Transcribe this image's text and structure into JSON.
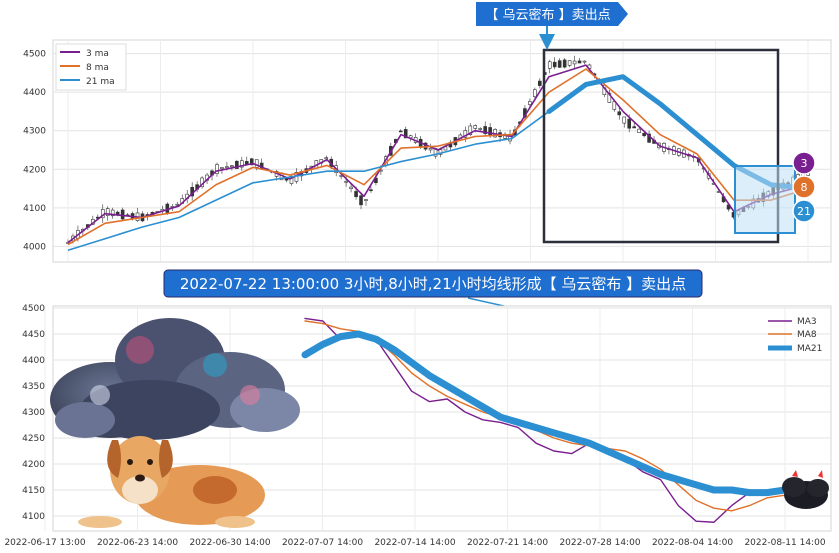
{
  "colors": {
    "ma3": "#7a1f8f",
    "ma8": "#e0712a",
    "ma21": "#2b8fd1",
    "banner_bg": "#1e6fd0",
    "frame": "#2c2f3a",
    "highlight_fill": "#bfe0f5",
    "highlight_stroke": "#2b8fd1"
  },
  "top_banner": {
    "text": "【 乌云密布 】卖出点"
  },
  "middle_banner": {
    "text": "2022-07-22 13:00:00 3小时,8小时,21小时均线形成【 乌云密布 】卖出点"
  },
  "badges": [
    {
      "label": "3",
      "color": "#7a1f8f"
    },
    {
      "label": "8",
      "color": "#e0712a"
    },
    {
      "label": "21",
      "color": "#2b8fd1"
    }
  ],
  "chart_data": [
    {
      "type": "candlestick",
      "y_ticks": [
        "4000",
        "4100",
        "4200",
        "4300",
        "4400",
        "4500"
      ],
      "ylim": [
        3970,
        4530
      ],
      "grid": true,
      "legend_position": "top-left",
      "legend": [
        "3 ma",
        "8 ma",
        "21 ma"
      ],
      "x": [
        0,
        5,
        10,
        15,
        20,
        25,
        30,
        35,
        40,
        45,
        50,
        55,
        60,
        65,
        70,
        75,
        80,
        85,
        90,
        95,
        100
      ],
      "price_path": [
        4010,
        4090,
        4075,
        4110,
        4200,
        4220,
        4170,
        4230,
        4110,
        4300,
        4240,
        4310,
        4280,
        4470,
        4480,
        4330,
        4260,
        4230,
        4080,
        4140,
        4190
      ],
      "series": [
        {
          "name": "3 ma",
          "values": [
            4010,
            4085,
            4075,
            4105,
            4195,
            4215,
            4175,
            4225,
            4130,
            4290,
            4250,
            4300,
            4285,
            4440,
            4470,
            4350,
            4260,
            4230,
            4090,
            4135,
            4160
          ]
        },
        {
          "name": "8 ma",
          "values": [
            4005,
            4060,
            4075,
            4090,
            4160,
            4205,
            4185,
            4210,
            4160,
            4255,
            4260,
            4285,
            4290,
            4400,
            4460,
            4380,
            4290,
            4240,
            4120,
            4120,
            4150
          ]
        },
        {
          "name": "21 ma",
          "values": [
            3990,
            4020,
            4050,
            4075,
            4120,
            4165,
            4180,
            4195,
            4195,
            4220,
            4240,
            4265,
            4280,
            4350,
            4420,
            4440,
            4370,
            4290,
            4210,
            4160,
            4150
          ]
        }
      ]
    },
    {
      "type": "line",
      "y_ticks": [
        "4100",
        "4150",
        "4200",
        "4250",
        "4300",
        "4350",
        "4400",
        "4450",
        "4500"
      ],
      "x_ticks": [
        "2022-06-17 13:00",
        "2022-06-23 14:00",
        "2022-06-30 14:00",
        "2022-07-07 14:00",
        "2022-07-14 14:00",
        "2022-07-21 14:00",
        "2022-07-28 14:00",
        "2022-08-04 14:00",
        "2022-08-11 14:00"
      ],
      "ylim": [
        4075,
        4500
      ],
      "grid": true,
      "legend_position": "top-right",
      "legend": [
        "MA3",
        "MA8",
        "MA21"
      ],
      "x": [
        0,
        3,
        6,
        9,
        12,
        15,
        18,
        21,
        24,
        27,
        30,
        33,
        36,
        39,
        42,
        45,
        48,
        51,
        54,
        57,
        60,
        63,
        66,
        69,
        72,
        75,
        78,
        81,
        84,
        87,
        90
      ],
      "series": [
        {
          "name": "MA3",
          "values": [
            4480,
            4475,
            4440,
            4445,
            4440,
            4390,
            4340,
            4320,
            4325,
            4300,
            4285,
            4280,
            4270,
            4240,
            4225,
            4220,
            4240,
            4230,
            4210,
            4185,
            4170,
            4120,
            4090,
            4088,
            4120,
            4145,
            4140,
            4150,
            null,
            null,
            null
          ]
        },
        {
          "name": "MA8",
          "values": [
            4475,
            4470,
            4460,
            4455,
            4440,
            4410,
            4375,
            4350,
            4330,
            4315,
            4300,
            4290,
            4280,
            4265,
            4250,
            4240,
            4235,
            4230,
            4225,
            4210,
            4190,
            4160,
            4130,
            4115,
            4110,
            4120,
            4135,
            4140,
            null,
            null,
            null
          ]
        },
        {
          "name": "MA21",
          "values": [
            4410,
            4430,
            4445,
            4450,
            4440,
            4420,
            4395,
            4370,
            4350,
            4330,
            4310,
            4290,
            4280,
            4270,
            4260,
            4250,
            4240,
            4225,
            4210,
            4195,
            4180,
            4170,
            4160,
            4150,
            4150,
            4145,
            4145,
            4150,
            null,
            null,
            null
          ]
        }
      ]
    }
  ]
}
